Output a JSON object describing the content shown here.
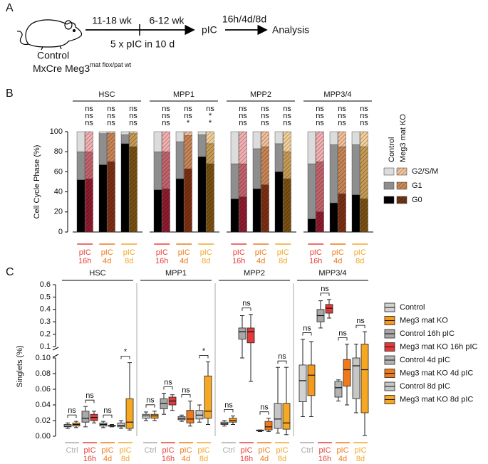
{
  "panel_a": {
    "label": "A",
    "age1": "11-18 wk",
    "age2": "6-12 wk",
    "treatment": "5 x pIC in 10 d",
    "pic": "pIC",
    "times": "16h/4d/8d",
    "analysis": "Analysis",
    "control": "Control",
    "genotype": "MxCre Meg3",
    "genotype_sup": "mat flox/pat wt"
  },
  "chart_data": [
    {
      "type": "stacked-bar",
      "panel": "B",
      "ylabel": "Cell Cycle Phase (%)",
      "ylim": [
        0,
        100
      ],
      "yticks": [
        0,
        20,
        40,
        60,
        80,
        100
      ],
      "groups": [
        "HSC",
        "MPP1",
        "MPP2",
        "MPP3/4"
      ],
      "timepoints": [
        [
          "pIC",
          "16h"
        ],
        [
          "pIC",
          "4d"
        ],
        [
          "pIC",
          "8d"
        ]
      ],
      "timepoint_colors": [
        "#e8403a",
        "#f07a1a",
        "#f2a72a"
      ],
      "genotypes": [
        "Control",
        "Meg3 mat KO"
      ],
      "significance": [
        [
          [
            "ns",
            "ns",
            "ns"
          ],
          [
            "ns",
            "ns",
            "ns"
          ],
          [
            "ns",
            "ns",
            "ns"
          ]
        ],
        [
          [
            "ns",
            "ns",
            "ns"
          ],
          [
            "ns",
            "ns",
            "*"
          ],
          [
            "ns",
            "*",
            "*"
          ]
        ],
        [
          [
            "ns",
            "ns",
            "ns"
          ],
          [
            "ns",
            "ns",
            "ns"
          ],
          [
            "ns",
            "ns",
            "ns"
          ]
        ],
        [
          [
            "ns",
            "ns",
            "ns"
          ],
          [
            "ns",
            "ns",
            "ns"
          ],
          [
            "ns",
            "ns",
            "ns"
          ]
        ]
      ],
      "series": [
        {
          "name": "G2/S/M",
          "color": "#dcdcdc",
          "ko_colors": [
            "#f3b1b3",
            "#f1c09b",
            "#f3d09a"
          ],
          "ko_legend_color": "#f2c59a",
          "values": [
            20,
            20,
            2,
            2,
            3,
            2,
            20,
            20,
            10,
            4,
            3,
            12,
            32,
            32,
            17,
            15,
            12,
            20,
            32,
            30,
            13,
            15,
            13,
            15
          ]
        },
        {
          "name": "G1",
          "color": "#8e8e8e",
          "ko_colors": [
            "#c4636d",
            "#c98555",
            "#c79b55"
          ],
          "ko_legend_color": "#c98a5a",
          "values": [
            28,
            27,
            31,
            28,
            9,
            13,
            38,
            37,
            37,
            33,
            22,
            20,
            35,
            33,
            40,
            38,
            28,
            27,
            55,
            50,
            58,
            47,
            50,
            52
          ]
        },
        {
          "name": "G0",
          "color": "#000000",
          "ko_colors": [
            "#8e1b2e",
            "#7d2f12",
            "#7a5012"
          ],
          "ko_legend_color": "#6e3416",
          "values": [
            52,
            53,
            67,
            70,
            88,
            85,
            42,
            43,
            53,
            63,
            75,
            68,
            33,
            35,
            43,
            47,
            60,
            53,
            13,
            20,
            29,
            38,
            37,
            33
          ]
        }
      ]
    },
    {
      "type": "box",
      "panel": "C",
      "ylabel": "Singlets (%)",
      "ylim": [
        0,
        0.1
      ],
      "yticks": [
        {
          "value": 0,
          "label": "0.00"
        },
        {
          "value": 0.02,
          "label": "0.02"
        },
        {
          "value": 0.04,
          "label": "0.04"
        },
        {
          "value": 0.06,
          "label": "0.06"
        },
        {
          "value": 0.08,
          "label": "0.08"
        },
        {
          "value": 0.1,
          "label": "0.10"
        }
      ],
      "ylim_upper": [
        0.1,
        0.6
      ],
      "yticks_upper": [
        0.1,
        0.2,
        0.3,
        0.4,
        0.5,
        0.6
      ],
      "groups": [
        "HSC",
        "MPP1",
        "MPP2",
        "MPP3/4"
      ],
      "xlabels": [
        [
          "Ctrl"
        ],
        [
          "pIC",
          "16h"
        ],
        [
          "pIC",
          "4d"
        ],
        [
          "pIC",
          "8d"
        ]
      ],
      "xlabel_colors": [
        "#aaaaaa",
        "#e8403a",
        "#f07a1a",
        "#f2a72a"
      ],
      "significance": [
        [
          "ns",
          "ns",
          "ns",
          "*"
        ],
        [
          "ns",
          "ns",
          "ns",
          "*"
        ],
        [
          "ns",
          "ns",
          "ns",
          "ns"
        ],
        [
          "ns",
          "ns",
          "ns",
          "ns"
        ]
      ],
      "series": [
        {
          "name": "Control",
          "color": "#d2d2d2",
          "values": [
            [
              0.01,
              0.012,
              0.013,
              0.015,
              0.017
            ],
            [
              0.02,
              0.023,
              0.026,
              0.028,
              0.031
            ],
            [
              0.013,
              0.015,
              0.016,
              0.018,
              0.02
            ],
            [
              0.025,
              0.044,
              0.071,
              0.091,
              0.16
            ]
          ]
        },
        {
          "name": "Meg3 mat KO",
          "color": "#f39a1f",
          "values": [
            [
              0.011,
              0.013,
              0.015,
              0.017,
              0.019
            ],
            [
              0.02,
              0.023,
              0.026,
              0.028,
              0.032
            ],
            [
              0.015,
              0.018,
              0.02,
              0.023,
              0.026
            ],
            [
              0.025,
              0.052,
              0.078,
              0.091,
              0.14
            ]
          ]
        },
        {
          "name": "Control 16h pIC",
          "color": "#a8a8a8",
          "values": [
            [
              0.012,
              0.018,
              0.023,
              0.032,
              0.038
            ],
            [
              0.028,
              0.035,
              0.042,
              0.048,
              0.055
            ],
            [
              0.1,
              0.16,
              0.22,
              0.25,
              0.35
            ],
            [
              0.25,
              0.3,
              0.35,
              0.4,
              0.47
            ]
          ]
        },
        {
          "name": "Meg3 mat KO 16h pIC",
          "color": "#e2393a",
          "values": [
            [
              0.017,
              0.02,
              0.024,
              0.028,
              0.032
            ],
            [
              0.033,
              0.04,
              0.045,
              0.05,
              0.053
            ],
            [
              0.07,
              0.13,
              0.22,
              0.25,
              0.36
            ],
            [
              0.33,
              0.37,
              0.41,
              0.44,
              0.48
            ]
          ]
        },
        {
          "name": "Control 4d pIC",
          "color": "#b4b4b4",
          "values": [
            [
              0.011,
              0.013,
              0.015,
              0.017,
              0.019
            ],
            [
              0.019,
              0.021,
              0.023,
              0.025,
              0.027
            ],
            [
              0.006,
              0.007,
              0.007,
              0.008,
              0.008
            ],
            [
              0.045,
              0.05,
              0.062,
              0.07,
              0.072
            ]
          ]
        },
        {
          "name": "Meg3 mat KO 4d pIC",
          "color": "#f07a1a",
          "values": [
            [
              0.012,
              0.013,
              0.013,
              0.014,
              0.015
            ],
            [
              0.013,
              0.017,
              0.022,
              0.033,
              0.045
            ],
            [
              0.006,
              0.008,
              0.012,
              0.019,
              0.023
            ],
            [
              0.04,
              0.064,
              0.085,
              0.098,
              0.12
            ]
          ]
        },
        {
          "name": "Control 8d pIC",
          "color": "#c6c6c6",
          "values": [
            [
              0.01,
              0.012,
              0.014,
              0.017,
              0.02
            ],
            [
              0.018,
              0.022,
              0.027,
              0.033,
              0.04
            ],
            [
              0.004,
              0.01,
              0.022,
              0.042,
              0.088
            ],
            [
              0.03,
              0.048,
              0.09,
              0.1,
              0.12
            ]
          ]
        },
        {
          "name": "Meg3 mat KO 8d pIC",
          "color": "#f7a823",
          "values": [
            [
              0.008,
              0.01,
              0.018,
              0.048,
              0.094
            ],
            [
              0.015,
              0.023,
              0.032,
              0.077,
              0.095
            ],
            [
              0.002,
              0.009,
              0.017,
              0.042,
              0.088
            ],
            [
              0.001,
              0.03,
              0.085,
              0.12,
              0.22
            ]
          ]
        }
      ]
    }
  ]
}
